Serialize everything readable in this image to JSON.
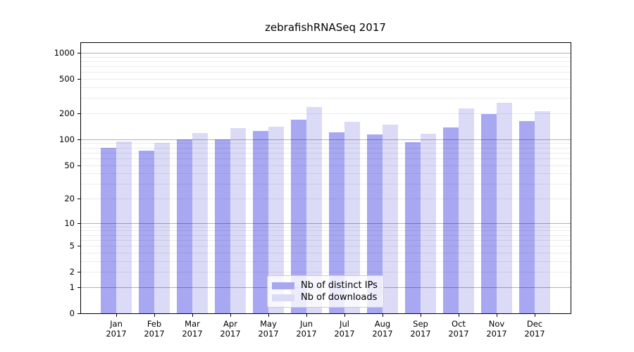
{
  "chart_data": {
    "type": "bar",
    "title": "zebrafishRNASeq 2017",
    "x_categories": [
      {
        "month": "Jan",
        "year": "2017"
      },
      {
        "month": "Feb",
        "year": "2017"
      },
      {
        "month": "Mar",
        "year": "2017"
      },
      {
        "month": "Apr",
        "year": "2017"
      },
      {
        "month": "May",
        "year": "2017"
      },
      {
        "month": "Jun",
        "year": "2017"
      },
      {
        "month": "Jul",
        "year": "2017"
      },
      {
        "month": "Aug",
        "year": "2017"
      },
      {
        "month": "Sep",
        "year": "2017"
      },
      {
        "month": "Oct",
        "year": "2017"
      },
      {
        "month": "Nov",
        "year": "2017"
      },
      {
        "month": "Dec",
        "year": "2017"
      }
    ],
    "series": [
      {
        "name": "Nb of distinct IPs",
        "color": "#a8a8f2",
        "values": [
          80,
          74,
          100,
          100,
          125,
          170,
          120,
          113,
          92,
          138,
          195,
          163
        ]
      },
      {
        "name": "Nb of downloads",
        "color": "#dbdbf7",
        "values": [
          95,
          90,
          118,
          135,
          140,
          235,
          160,
          148,
          115,
          230,
          265,
          210
        ]
      }
    ],
    "y_scale": "log1p",
    "y_ticks": [
      1000,
      500,
      200,
      100,
      50,
      20,
      10,
      5,
      2,
      1,
      0
    ],
    "ylim": [
      0,
      1300
    ],
    "grid": {
      "horizontal": true,
      "major_at_powers_of_10": true,
      "minor_log_lines": true
    },
    "legend": {
      "position": "lower center"
    }
  },
  "colors": {
    "background": "#ffffff",
    "spine": "#000000",
    "grid_minor": "rgba(0,0,0,0.075)",
    "grid_major": "rgba(0,0,0,0.30)"
  }
}
